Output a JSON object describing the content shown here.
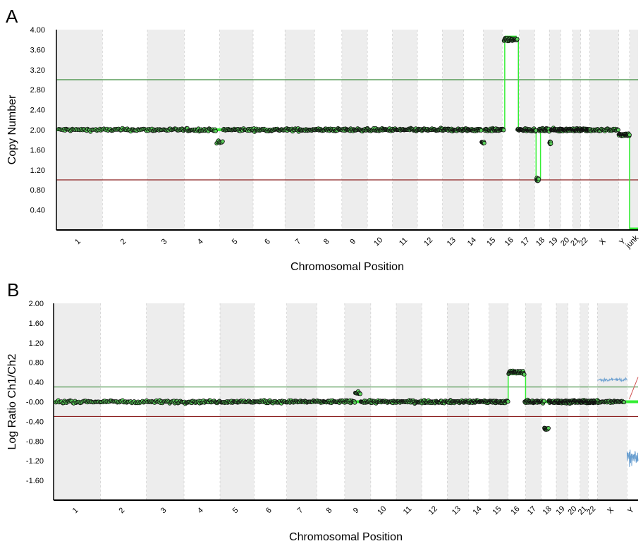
{
  "panel_a_letter": "A",
  "panel_b_letter": "B",
  "colors": {
    "band": "#ededed",
    "segment": "#33ee33",
    "gain_line": "#3a8a3a",
    "loss_line": "#8b2020",
    "point_fill": "#5ad05a",
    "point_stroke": "#111111",
    "blue_trace": "#6a9fd0",
    "red_trace": "#d05050"
  },
  "chart_data": [
    {
      "type": "scatter",
      "panel": "A",
      "title": "",
      "xlabel": "Chromosomal Position",
      "ylabel": "Copy  Number",
      "ylim": [
        0,
        4.0
      ],
      "yticks": [
        "0.40",
        "0.80",
        "1.20",
        "1.60",
        "2.00",
        "2.40",
        "2.80",
        "3.20",
        "3.60",
        "4.00"
      ],
      "categories": [
        "1",
        "2",
        "3",
        "4",
        "5",
        "6",
        "7",
        "8",
        "9",
        "10",
        "11",
        "12",
        "13",
        "14",
        "15",
        "16",
        "17",
        "18",
        "19",
        "20",
        "21",
        "22",
        "X",
        "Y",
        "junk"
      ],
      "chrom_weights": [
        8.1,
        7.9,
        6.5,
        6.2,
        5.9,
        5.6,
        5.2,
        4.8,
        4.5,
        4.4,
        4.4,
        4.4,
        3.7,
        3.5,
        3.3,
        3.0,
        2.7,
        2.6,
        2.0,
        2.1,
        1.4,
        1.6,
        5.1,
        1.9,
        1.5
      ],
      "threshold_gain": 3.0,
      "threshold_loss": 1.0,
      "baseline": 2.0,
      "segments": [
        {
          "x": [
            0,
            15.05
          ],
          "y": 2.0
        },
        {
          "x": [
            15.15,
            15.85
          ],
          "y": 3.85
        },
        {
          "x": [
            15.95,
            17.05
          ],
          "y": 2.0
        },
        {
          "x": [
            17.1,
            17.3
          ],
          "y": 1.0
        },
        {
          "x": [
            17.4,
            23.0
          ],
          "y": 2.0
        },
        {
          "x": [
            23.0,
            24.0
          ],
          "y": 1.9
        },
        {
          "x": [
            24.0,
            25.0
          ],
          "y": 0.02
        }
      ],
      "features": [
        {
          "x": [
            3.9,
            4.1
          ],
          "y": 1.75
        },
        {
          "x": [
            13.9,
            14.05
          ],
          "y": 1.75
        },
        {
          "x": [
            15.1,
            15.9
          ],
          "y": 3.8
        },
        {
          "x": [
            17.1,
            17.3
          ],
          "y": 1.0
        },
        {
          "x": [
            18.0,
            18.15
          ],
          "y": 1.75
        }
      ]
    },
    {
      "type": "scatter",
      "panel": "B",
      "title": "",
      "xlabel": "Chromosomal Position",
      "ylabel": "Log Ratio Ch1/Ch2",
      "ylim": [
        -2.0,
        2.0
      ],
      "yticks": [
        "2.00",
        "1.60",
        "1.20",
        "0.80",
        "0.40",
        "-0.00",
        "-0.40",
        "-0.80",
        "-1.20",
        "-1.60"
      ],
      "categories": [
        "1",
        "2",
        "3",
        "4",
        "5",
        "6",
        "7",
        "8",
        "9",
        "10",
        "11",
        "12",
        "13",
        "14",
        "15",
        "16",
        "17",
        "18",
        "19",
        "20",
        "21",
        "22",
        "X",
        "Y"
      ],
      "chrom_weights": [
        8.1,
        7.9,
        6.5,
        6.2,
        5.9,
        5.6,
        5.2,
        4.8,
        4.5,
        4.4,
        4.4,
        4.4,
        3.7,
        3.5,
        3.3,
        3.0,
        2.7,
        2.6,
        2.0,
        2.1,
        1.4,
        1.6,
        5.1,
        1.9
      ],
      "threshold_gain": 0.3,
      "threshold_loss": -0.3,
      "baseline": 0.0,
      "segments": [
        {
          "x": [
            0,
            15.0
          ],
          "y": 0.0
        },
        {
          "x": [
            15.0,
            15.95
          ],
          "y": 0.57
        },
        {
          "x": [
            16.0,
            24.0
          ],
          "y": 0.0
        }
      ],
      "features": [
        {
          "x": [
            8.4,
            8.6
          ],
          "y": 0.18
        },
        {
          "x": [
            15.05,
            15.9
          ],
          "y": 0.6
        },
        {
          "x": [
            17.2,
            17.5
          ],
          "y": -0.55
        }
      ],
      "blue_trace": {
        "x": [
          22.0,
          23.0
        ],
        "y": 0.45
      },
      "blue_trace_y": {
        "x": [
          23.0,
          24.0
        ],
        "y": -1.15
      }
    }
  ]
}
